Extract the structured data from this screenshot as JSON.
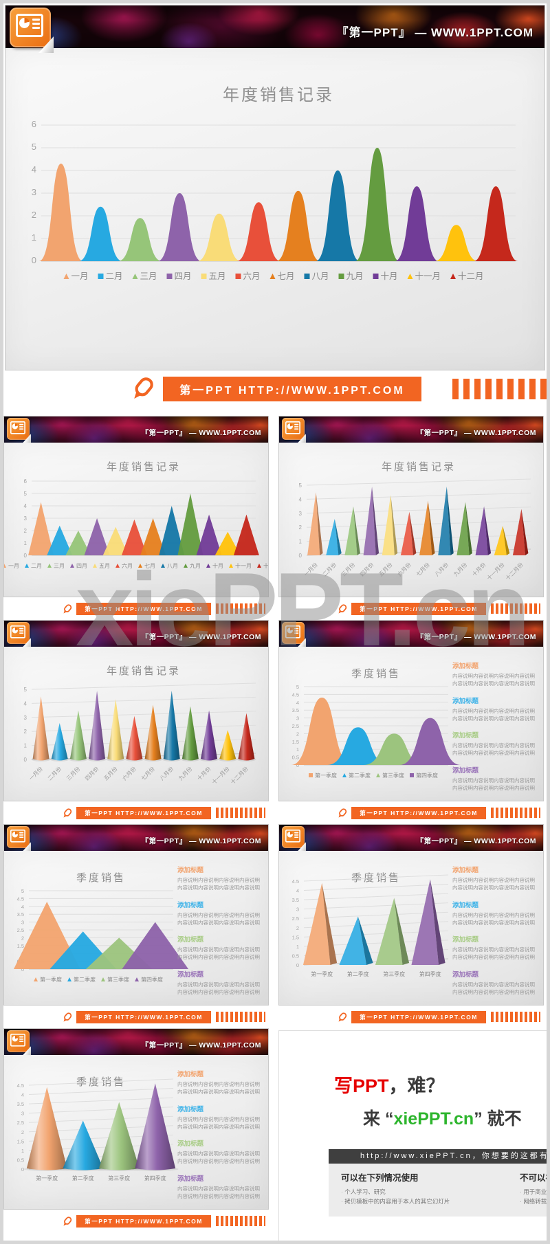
{
  "branding": {
    "header_title": "『第一PPT』 — WWW.1PPT.COM",
    "footer_text": "第一PPT HTTP://WWW.1PPT.COM"
  },
  "page": {
    "watermark": "xiePPT.cn"
  },
  "colors": {
    "accent_orange": "#f26522",
    "month_palette": [
      "#f2a46f",
      "#27a9e1",
      "#96c579",
      "#8e63aa",
      "#f9dc78",
      "#e8503a",
      "#e5801f",
      "#1678a7",
      "#649c40",
      "#713c97",
      "#ffc20d",
      "#c5281c"
    ],
    "quarter_palette": [
      "#f2a46f",
      "#27a9e1",
      "#9cc47e",
      "#8e63aa"
    ],
    "heading_colors": [
      "#f2a46f",
      "#3fb3e8",
      "#a8cc86",
      "#9973b8"
    ]
  },
  "panel": {
    "heading": "添加标题",
    "line": "内容说明内容说明内容说明内容说明"
  },
  "chart_data": [
    {
      "type": "area",
      "kind": "peak",
      "size": "large",
      "title": "年度销售记录",
      "categories": [
        "一月",
        "二月",
        "三月",
        "四月",
        "五月",
        "六月",
        "七月",
        "八月",
        "九月",
        "十月",
        "十一月",
        "十二月"
      ],
      "values": [
        4.3,
        2.4,
        1.9,
        3.0,
        2.1,
        2.6,
        3.1,
        4.0,
        5.0,
        3.3,
        1.6,
        3.3
      ],
      "ylim": [
        0,
        6
      ],
      "ystep": 1,
      "palette": "month",
      "xlabels": "legend",
      "legend_markers": [
        "tri",
        "sq",
        "tri",
        "sq",
        "sq",
        "sq",
        "tri",
        "sq",
        "sq",
        "sq",
        "tri",
        "tri"
      ],
      "legend_position": "bottom",
      "grid": true
    },
    {
      "type": "area",
      "kind": "tri",
      "size": "small",
      "title": "年度销售记录",
      "categories": [
        "一月",
        "二月",
        "三月",
        "四月",
        "五月",
        "六月",
        "七月",
        "八月",
        "九月",
        "十月",
        "十一月",
        "十二月"
      ],
      "values": [
        4.3,
        2.4,
        2.0,
        3.0,
        2.3,
        2.9,
        3.0,
        4.0,
        5.0,
        3.3,
        1.9,
        3.3
      ],
      "ylim": [
        0,
        6
      ],
      "ystep": 1,
      "palette": "month",
      "xlabels": "legend",
      "legend_markers": [
        "tri",
        "tri",
        "tri",
        "tri",
        "tri",
        "tri",
        "tri",
        "tri",
        "tri",
        "tri",
        "tri",
        "tri"
      ],
      "legend_position": "bottom",
      "grid": true
    },
    {
      "type": "bar",
      "kind": "pyr",
      "size": "small",
      "title": "年度销售记录",
      "categories": [
        "一月份",
        "二月份",
        "三月份",
        "四月份",
        "五月份",
        "六月份",
        "七月份",
        "八月份",
        "九月份",
        "十月份",
        "十一月份",
        "十二月份"
      ],
      "values": [
        4.5,
        2.6,
        3.5,
        4.9,
        4.3,
        3.1,
        3.9,
        4.9,
        3.8,
        3.5,
        2.1,
        3.3
      ],
      "ylim": [
        0,
        5
      ],
      "ystep": 1,
      "palette": "month",
      "xlabels": "rot",
      "grid": true
    },
    {
      "type": "bar",
      "kind": "cone",
      "size": "small",
      "title": "年度销售记录",
      "categories": [
        "一月份",
        "二月份",
        "三月份",
        "四月份",
        "五月份",
        "六月份",
        "七月份",
        "八月份",
        "九月份",
        "十月份",
        "十一月份",
        "十二月份"
      ],
      "values": [
        4.5,
        2.6,
        3.5,
        4.9,
        4.3,
        3.1,
        3.9,
        4.9,
        3.8,
        3.5,
        2.1,
        3.3
      ],
      "ylim": [
        0,
        5
      ],
      "ystep": 1,
      "palette": "month",
      "xlabels": "rot",
      "grid": true
    },
    {
      "type": "area",
      "kind": "peak",
      "size": "small",
      "panel": true,
      "title": "季度销售",
      "categories": [
        "第一季度",
        "第二季度",
        "第三季度",
        "第四季度"
      ],
      "values": [
        4.3,
        2.4,
        2.0,
        3.0
      ],
      "ylim": [
        0,
        5
      ],
      "ystep": 0.5,
      "palette": "quarter",
      "xlabels": "legend",
      "legend_markers": [
        "sq",
        "tri",
        "tri",
        "sq"
      ],
      "legend_position": "bottom",
      "grid": true
    },
    {
      "type": "area",
      "kind": "tri",
      "size": "small",
      "panel": true,
      "title": "季度销售",
      "categories": [
        "第一季度",
        "第二季度",
        "第三季度",
        "第四季度"
      ],
      "values": [
        4.3,
        2.4,
        2.0,
        3.0
      ],
      "ylim": [
        0,
        5
      ],
      "ystep": 0.5,
      "palette": "quarter",
      "xlabels": "legend",
      "legend_markers": [
        "tri",
        "tri",
        "tri",
        "tri"
      ],
      "legend_position": "bottom",
      "grid": true
    },
    {
      "type": "bar",
      "kind": "pyr",
      "size": "small",
      "panel": true,
      "title": "季度销售",
      "categories": [
        "第一季度",
        "第二季度",
        "第三季度",
        "第四季度"
      ],
      "values": [
        4.4,
        2.6,
        3.6,
        4.6
      ],
      "ylim": [
        0,
        4.5
      ],
      "ystep": 0.5,
      "palette": "quarter",
      "xlabels": "below",
      "grid": true
    },
    {
      "type": "bar",
      "kind": "cone",
      "size": "small",
      "panel": true,
      "title": "季度销售",
      "categories": [
        "第一季度",
        "第二季度",
        "第三季度",
        "第四季度"
      ],
      "values": [
        4.4,
        2.6,
        3.6,
        4.6
      ],
      "ylim": [
        0,
        4.5
      ],
      "ystep": 0.5,
      "palette": "quarter",
      "xlabels": "below",
      "grid": true
    }
  ],
  "ad": {
    "line1_red": "写PPT",
    "line1_rest": "，难？",
    "line2_prefix": "来 “",
    "line2_green": "xiePPT.cn",
    "line2_suffix": "” 就不",
    "bar": "http://www.xiePPT.cn，你想要的这都有",
    "allow_title": "可以在下列情况使用",
    "allow_items": [
      "个人学习、研究",
      "拷贝模板中的内容用于本人的其它幻灯片"
    ],
    "deny_title": "不可以在下列情况使用",
    "deny_items": [
      "用于商业用途，或任何形式的转售",
      "网络转载、线上/线下传播"
    ]
  }
}
